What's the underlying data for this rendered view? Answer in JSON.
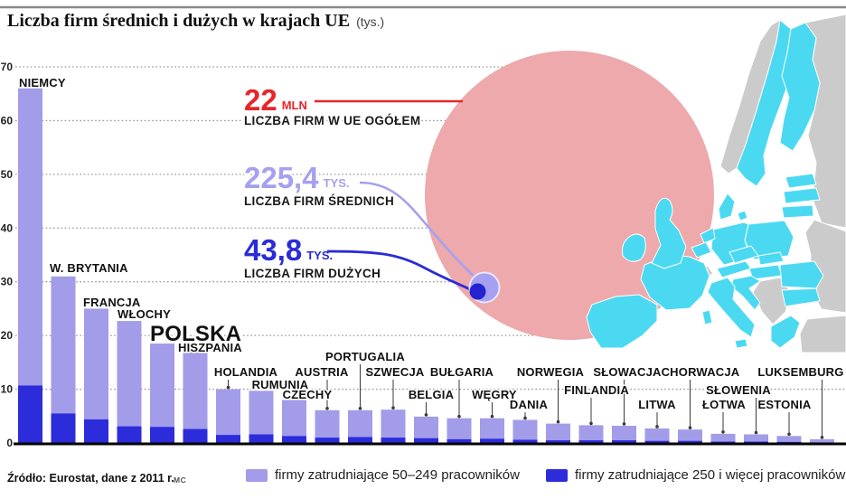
{
  "title": {
    "text": "Liczba firm średnich i dużych w krajach UE",
    "unit": "(tys.)"
  },
  "source": {
    "text": "Źródło: Eurostat, dane z 2011 r.",
    "credit": "MC"
  },
  "callouts": {
    "total": {
      "value": "22",
      "unit": "MLN",
      "label": "LICZBA FIRM W UE OGÓŁEM",
      "color": "#e7252a"
    },
    "medium": {
      "value": "225,4",
      "unit": "TYS.",
      "label": "LICZBA FIRM ŚREDNICH",
      "color": "#a5a0ef"
    },
    "large": {
      "value": "43,8",
      "unit": "TYS.",
      "label": "LICZBA FIRM DUŻYCH",
      "color": "#2b2bd8"
    }
  },
  "legend": {
    "items": [
      {
        "key": "medium",
        "label": "firmy zatrudniające 50–249 pracowników",
        "color": "#a29ce9"
      },
      {
        "key": "large",
        "label": "firmy zatrudniające 250 i więcej pracowników",
        "color": "#2c2cdb"
      }
    ]
  },
  "map": {
    "eu_color": "#4bd9f2",
    "non_eu_color": "#cbcbcb",
    "circle_color": "#eda9ab"
  },
  "chart_data": {
    "type": "bar",
    "stacked": true,
    "title": "Liczba firm średnich i dużych w krajach UE (tys.)",
    "xlabel": "",
    "ylabel": "tys.",
    "ylim": [
      0,
      70
    ],
    "yticks": [
      0,
      10,
      20,
      30,
      40,
      50,
      60,
      70
    ],
    "grid": "dotted-horizontal",
    "legend_position": "bottom",
    "categories": [
      "NIEMCY",
      "W. BRYTANIA",
      "FRANCJA",
      "WŁOCHY",
      "POLSKA",
      "HISZPANIA",
      "HOLANDIA",
      "RUMUNIA",
      "CZECHY",
      "AUSTRIA",
      "PORTUGALIA",
      "SZWECJA",
      "BELGIA",
      "BUŁGARIA",
      "WĘGRY",
      "DANIA",
      "NORWEGIA",
      "FINLANDIA",
      "SŁOWACJA",
      "LITWA",
      "CHORWACJA",
      "ŁOTWA",
      "SŁOWENIA",
      "ESTONIA",
      "LUKSEMBURG"
    ],
    "series": [
      {
        "name": "firmy zatrudniające 50–249 pracowników",
        "color": "#a29ce9",
        "values": [
          55.3,
          25.5,
          20.6,
          19.6,
          15.5,
          14.4,
          8.5,
          8.1,
          6.7,
          5.1,
          5.0,
          5.2,
          4.0,
          3.9,
          3.8,
          3.7,
          3.1,
          2.8,
          2.7,
          2.3,
          2.1,
          1.45,
          1.35,
          1.1,
          0.6
        ]
      },
      {
        "name": "firmy zatrudniające 250 i więcej pracowników",
        "color": "#2c2cdb",
        "values": [
          10.7,
          5.5,
          4.4,
          3.1,
          3.0,
          2.6,
          1.5,
          1.6,
          1.3,
          1.0,
          1.1,
          1.0,
          0.9,
          0.7,
          0.8,
          0.6,
          0.5,
          0.5,
          0.5,
          0.4,
          0.4,
          0.25,
          0.25,
          0.2,
          0.1
        ]
      }
    ],
    "annotations": [
      {
        "value": "22 MLN",
        "meaning": "LICZBA FIRM W UE OGÓŁEM"
      },
      {
        "value": "225,4 TYS.",
        "meaning": "LICZBA FIRM ŚREDNICH"
      },
      {
        "value": "43,8 TYS.",
        "meaning": "LICZBA FIRM DUŻYCH"
      }
    ]
  }
}
